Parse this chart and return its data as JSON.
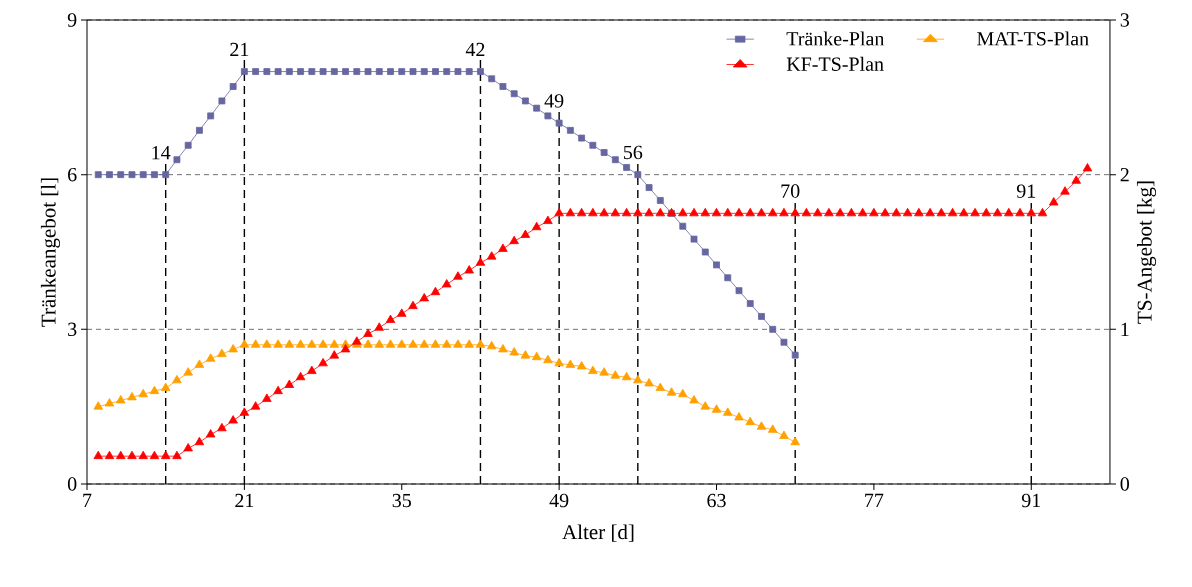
{
  "chart_data": {
    "type": "line",
    "xlabel": "Alter [d]",
    "ylabel": "Tränkeangebot [l]",
    "y2label": "TS-Angebot [kg]",
    "xlim": [
      7,
      98
    ],
    "xticks": [
      7,
      21,
      35,
      49,
      63,
      77,
      91
    ],
    "ylim": [
      0,
      9
    ],
    "yticks": [
      0,
      3,
      6,
      9
    ],
    "y2lim": [
      0,
      3
    ],
    "y2ticks": [
      0,
      1,
      2,
      3
    ],
    "grid": "y",
    "legend": "top right",
    "series": [
      {
        "name": "Tränke-Plan",
        "color": "#6666a0",
        "marker": "square",
        "x": [
          8,
          9,
          10,
          11,
          12,
          13,
          14,
          15,
          16,
          17,
          18,
          19,
          20,
          21,
          22,
          23,
          24,
          25,
          26,
          27,
          28,
          29,
          30,
          31,
          32,
          33,
          34,
          35,
          36,
          37,
          38,
          39,
          40,
          41,
          42,
          43,
          44,
          45,
          46,
          47,
          48,
          49,
          50,
          51,
          52,
          53,
          54,
          55,
          56,
          57,
          58,
          59,
          60,
          61,
          62,
          63,
          64,
          65,
          66,
          67,
          68,
          69,
          70
        ],
        "values": [
          6,
          6,
          6,
          6,
          6,
          6,
          6,
          6.29,
          6.57,
          6.86,
          7.14,
          7.43,
          7.71,
          8,
          8,
          8,
          8,
          8,
          8,
          8,
          8,
          8,
          8,
          8,
          8,
          8,
          8,
          8,
          8,
          8,
          8,
          8,
          8,
          8,
          8,
          7.86,
          7.71,
          7.57,
          7.43,
          7.29,
          7.14,
          7,
          6.86,
          6.71,
          6.57,
          6.43,
          6.29,
          6.14,
          6,
          5.75,
          5.5,
          5.25,
          5,
          4.75,
          4.5,
          4.25,
          4,
          3.75,
          3.5,
          3.25,
          3,
          2.75,
          2.5
        ]
      },
      {
        "name": "MAT-TS-Plan",
        "color": "#ffa000",
        "marker": "triangle",
        "axis": "y2",
        "x": [
          8,
          9,
          10,
          11,
          12,
          13,
          14,
          15,
          16,
          17,
          18,
          19,
          20,
          21,
          22,
          23,
          24,
          25,
          26,
          27,
          28,
          29,
          30,
          31,
          32,
          33,
          34,
          35,
          36,
          37,
          38,
          39,
          40,
          41,
          42,
          43,
          44,
          45,
          46,
          47,
          48,
          49,
          50,
          51,
          52,
          53,
          54,
          55,
          56,
          57,
          58,
          59,
          60,
          61,
          62,
          63,
          64,
          65,
          66,
          67,
          68,
          69,
          70
        ],
        "values": [
          0.5,
          0.52,
          0.54,
          0.56,
          0.58,
          0.6,
          0.62,
          0.67,
          0.72,
          0.77,
          0.81,
          0.84,
          0.87,
          0.9,
          0.9,
          0.9,
          0.9,
          0.9,
          0.9,
          0.9,
          0.9,
          0.9,
          0.9,
          0.9,
          0.9,
          0.9,
          0.9,
          0.9,
          0.9,
          0.9,
          0.9,
          0.9,
          0.9,
          0.9,
          0.9,
          0.89,
          0.87,
          0.85,
          0.83,
          0.82,
          0.8,
          0.78,
          0.77,
          0.76,
          0.73,
          0.72,
          0.7,
          0.69,
          0.67,
          0.65,
          0.62,
          0.59,
          0.58,
          0.54,
          0.5,
          0.48,
          0.46,
          0.43,
          0.4,
          0.37,
          0.35,
          0.31,
          0.27
        ]
      },
      {
        "name": "KF-TS-Plan",
        "color": "#ff0000",
        "marker": "triangle",
        "axis": "y2",
        "x": [
          8,
          9,
          10,
          11,
          12,
          13,
          14,
          15,
          16,
          17,
          18,
          19,
          20,
          21,
          22,
          23,
          24,
          25,
          26,
          27,
          28,
          29,
          30,
          31,
          32,
          33,
          34,
          35,
          36,
          37,
          38,
          39,
          40,
          41,
          42,
          43,
          44,
          45,
          46,
          47,
          48,
          49,
          50,
          51,
          52,
          53,
          54,
          55,
          56,
          57,
          58,
          59,
          60,
          61,
          62,
          63,
          64,
          65,
          66,
          67,
          68,
          69,
          70,
          71,
          72,
          73,
          74,
          75,
          76,
          77,
          78,
          79,
          80,
          81,
          82,
          83,
          84,
          85,
          86,
          87,
          88,
          89,
          90,
          91,
          92,
          93,
          94,
          95,
          96
        ],
        "values": [
          0.18,
          0.18,
          0.18,
          0.18,
          0.18,
          0.18,
          0.18,
          0.18,
          0.23,
          0.27,
          0.32,
          0.36,
          0.41,
          0.46,
          0.5,
          0.55,
          0.6,
          0.64,
          0.69,
          0.73,
          0.78,
          0.83,
          0.87,
          0.92,
          0.97,
          1.01,
          1.06,
          1.1,
          1.15,
          1.2,
          1.24,
          1.29,
          1.34,
          1.38,
          1.43,
          1.47,
          1.52,
          1.57,
          1.61,
          1.66,
          1.7,
          1.75,
          1.75,
          1.75,
          1.75,
          1.75,
          1.75,
          1.75,
          1.75,
          1.75,
          1.75,
          1.75,
          1.75,
          1.75,
          1.75,
          1.75,
          1.75,
          1.75,
          1.75,
          1.75,
          1.75,
          1.75,
          1.75,
          1.75,
          1.75,
          1.75,
          1.75,
          1.75,
          1.75,
          1.75,
          1.75,
          1.75,
          1.75,
          1.75,
          1.75,
          1.75,
          1.75,
          1.75,
          1.75,
          1.75,
          1.75,
          1.75,
          1.75,
          1.75,
          1.75,
          1.82,
          1.89,
          1.96,
          2.04
        ]
      }
    ],
    "ref_lines": [
      {
        "axis": "x",
        "value": 14,
        "label": "14",
        "color": "#000000",
        "line_style": "dashed"
      },
      {
        "axis": "x",
        "value": 21,
        "label": "21",
        "color": "#000000",
        "line_style": "dashed"
      },
      {
        "axis": "x",
        "value": 42,
        "label": "42",
        "color": "#000000",
        "line_style": "dashed"
      },
      {
        "axis": "x",
        "value": 49,
        "label": "49",
        "color": "#000000",
        "line_style": "dashed"
      },
      {
        "axis": "x",
        "value": 56,
        "label": "56",
        "color": "#000000",
        "line_style": "dashed"
      },
      {
        "axis": "x",
        "value": 70,
        "label": "70",
        "color": "#000000",
        "line_style": "dashed"
      },
      {
        "axis": "x",
        "value": 91,
        "label": "91",
        "color": "#000000",
        "line_style": "dashed"
      }
    ]
  }
}
